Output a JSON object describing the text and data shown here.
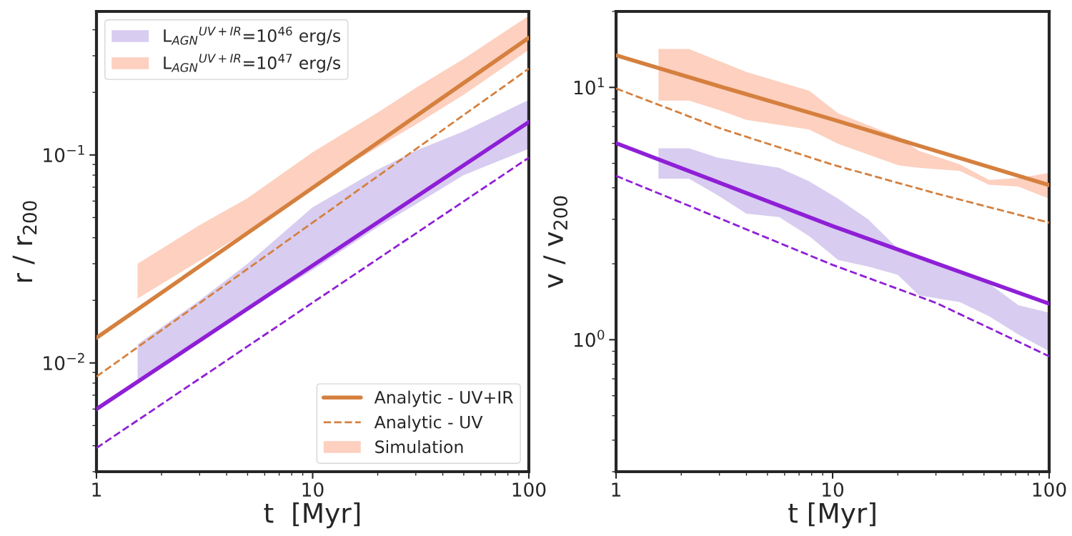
{
  "chart_data": [
    {
      "type": "line",
      "xlabel": "t  [Myr]",
      "ylabel": "r / r$_{200}$",
      "log": "xy",
      "xlim": [
        1,
        100
      ],
      "xticks": [
        1,
        10,
        100
      ],
      "ylim": [
        0.003,
        0.49
      ],
      "yticks": [
        {
          "value": 0.01,
          "label": "10$^{−2}$"
        },
        {
          "value": 0.1,
          "label": "10$^{−1}$"
        }
      ],
      "grid": false,
      "legend": "top left",
      "annotations": [
        "Simulation"
      ],
      "series": [
        {
          "type": "area",
          "name": "L$_{AGN}$$^{UV+IR}$=10$^{46}$ erg/s",
          "color": "#d8ccf0",
          "x": [
            1.55,
            3,
            5,
            10,
            20,
            30,
            50,
            100
          ],
          "values": [
            null,
            null,
            null,
            null,
            null,
            null,
            null,
            null
          ],
          "lower": [
            0.0082,
            0.0125,
            0.018,
            0.028,
            0.045,
            0.058,
            0.08,
            0.107
          ],
          "upper": [
            0.0123,
            0.02,
            0.03,
            0.056,
            0.085,
            0.105,
            0.13,
            0.184
          ]
        },
        {
          "type": "area",
          "name": "L$_{AGN}$$^{UV+IR}$=10$^{47}$ erg/s",
          "color": "#fdd0bf",
          "x": [
            1.55,
            3,
            5,
            10,
            20,
            30,
            50,
            100
          ],
          "values": [
            null,
            null,
            null,
            null,
            null,
            null,
            null,
            null
          ],
          "lower": [
            0.0204,
            0.031,
            0.043,
            0.07,
            0.109,
            0.14,
            0.195,
            0.32
          ],
          "upper": [
            0.03,
            0.046,
            0.062,
            0.103,
            0.16,
            0.21,
            0.29,
            0.467
          ]
        },
        {
          "name": "Analytic - UV+IR",
          "color": "#d5803f",
          "line_style": "solid",
          "x": [
            1,
            10,
            100
          ],
          "values": [
            0.0132,
            0.0695,
            0.366
          ]
        },
        {
          "name": "Analytic - UV",
          "color": "#d5803f",
          "line_style": "dashed",
          "x": [
            1,
            10,
            100
          ],
          "values": [
            0.0086,
            0.0473,
            0.26
          ]
        },
        {
          "color": "#8f1fd6",
          "line_style": "solid",
          "x": [
            1,
            10,
            100
          ],
          "values": [
            0.006,
            0.0294,
            0.144
          ]
        },
        {
          "color": "#8f1fd6",
          "line_style": "dashed",
          "x": [
            1,
            10,
            100
          ],
          "values": [
            0.0039,
            0.0195,
            0.097
          ]
        }
      ]
    },
    {
      "type": "line",
      "xlabel": "t [Myr]",
      "ylabel": "v / v$_{200}$",
      "log": "xy",
      "xlim": [
        1,
        100
      ],
      "xticks": [
        1,
        10,
        100
      ],
      "ylim": [
        0.3,
        20
      ],
      "yticks": [
        {
          "value": 1,
          "label": "10$^{0}$"
        },
        {
          "value": 10,
          "label": "10$^{1}$"
        }
      ],
      "grid": false,
      "series": [
        {
          "type": "area",
          "color": "#fdd0bf",
          "x": [
            1.57,
            2.17,
            2.94,
            4.0,
            7.8,
            10.6,
            20.1,
            25,
            38.7,
            52.8,
            72,
            100
          ],
          "values": [
            null,
            null,
            null,
            null,
            null,
            null,
            null,
            null,
            null,
            null,
            null,
            null
          ],
          "lower": [
            8.87,
            8.87,
            8.17,
            7.43,
            6.81,
            5.97,
            4.91,
            4.8,
            4.66,
            4.11,
            4.05,
            3.62
          ],
          "upper": [
            14.2,
            14.2,
            12.8,
            11.5,
            9.7,
            7.9,
            6.36,
            5.61,
            4.95,
            4.3,
            4.37,
            4.58
          ]
        },
        {
          "type": "area",
          "color": "#d8ccf0",
          "x": [
            1.57,
            2.17,
            2.94,
            4.0,
            5.66,
            7.8,
            10.6,
            14.6,
            20,
            25,
            30,
            38.7,
            52.8,
            72,
            100
          ],
          "values": [
            null,
            null,
            null,
            null,
            null,
            null,
            null,
            null,
            null,
            null,
            null,
            null,
            null,
            null,
            null
          ],
          "lower": [
            4.35,
            4.35,
            3.74,
            3.16,
            3.06,
            2.57,
            2.07,
            1.95,
            1.81,
            1.5,
            1.46,
            1.41,
            1.24,
            1.05,
            0.9
          ],
          "upper": [
            5.74,
            5.74,
            5.27,
            5.03,
            4.8,
            4.24,
            3.62,
            3.0,
            2.3,
            2.15,
            2.0,
            1.85,
            1.67,
            1.37,
            1.28
          ]
        },
        {
          "color": "#d5803f",
          "line_style": "solid",
          "x": [
            1,
            3,
            10,
            30,
            100
          ],
          "values": [
            13.4,
            10.1,
            7.46,
            5.6,
            4.1
          ]
        },
        {
          "color": "#d5803f",
          "line_style": "dashed",
          "x": [
            1,
            3,
            10,
            30,
            100
          ],
          "values": [
            9.9,
            6.9,
            4.94,
            3.8,
            2.91
          ]
        },
        {
          "color": "#8f1fd6",
          "line_style": "solid",
          "x": [
            1,
            3,
            10,
            30,
            100
          ],
          "values": [
            6.01,
            4.19,
            2.82,
            2.01,
            1.39
          ]
        },
        {
          "color": "#8f1fd6",
          "line_style": "dashed",
          "x": [
            1,
            3,
            10,
            30,
            100
          ],
          "values": [
            4.46,
            3.03,
            1.98,
            1.4,
            0.86
          ]
        }
      ]
    }
  ]
}
